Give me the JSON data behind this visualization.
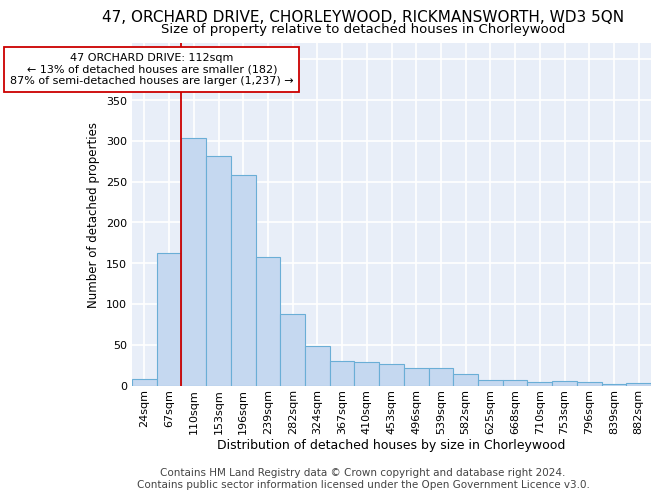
{
  "title": "47, ORCHARD DRIVE, CHORLEYWOOD, RICKMANSWORTH, WD3 5QN",
  "subtitle": "Size of property relative to detached houses in Chorleywood",
  "xlabel": "Distribution of detached houses by size in Chorleywood",
  "ylabel": "Number of detached properties",
  "categories": [
    "24sqm",
    "67sqm",
    "110sqm",
    "153sqm",
    "196sqm",
    "239sqm",
    "282sqm",
    "324sqm",
    "367sqm",
    "410sqm",
    "453sqm",
    "496sqm",
    "539sqm",
    "582sqm",
    "625sqm",
    "668sqm",
    "710sqm",
    "753sqm",
    "796sqm",
    "839sqm",
    "882sqm"
  ],
  "values": [
    8,
    163,
    303,
    281,
    258,
    157,
    88,
    49,
    30,
    29,
    26,
    22,
    22,
    14,
    7,
    7,
    4,
    5,
    4,
    2,
    3
  ],
  "bar_color": "#c5d8f0",
  "bar_edge_color": "#6aaed6",
  "vline_x": 1.5,
  "vline_color": "#cc0000",
  "annotation_text": "47 ORCHARD DRIVE: 112sqm\n← 13% of detached houses are smaller (182)\n87% of semi-detached houses are larger (1,237) →",
  "annotation_box_color": "white",
  "annotation_box_edge": "#cc0000",
  "ylim": [
    0,
    420
  ],
  "yticks": [
    0,
    50,
    100,
    150,
    200,
    250,
    300,
    350,
    400
  ],
  "footer_line1": "Contains HM Land Registry data © Crown copyright and database right 2024.",
  "footer_line2": "Contains public sector information licensed under the Open Government Licence v3.0.",
  "background_color": "#e8eef8",
  "grid_color": "#ffffff",
  "title_fontsize": 11,
  "subtitle_fontsize": 9.5,
  "xlabel_fontsize": 9,
  "ylabel_fontsize": 8.5,
  "tick_fontsize": 8,
  "footer_fontsize": 7.5,
  "annotation_fontsize": 8
}
